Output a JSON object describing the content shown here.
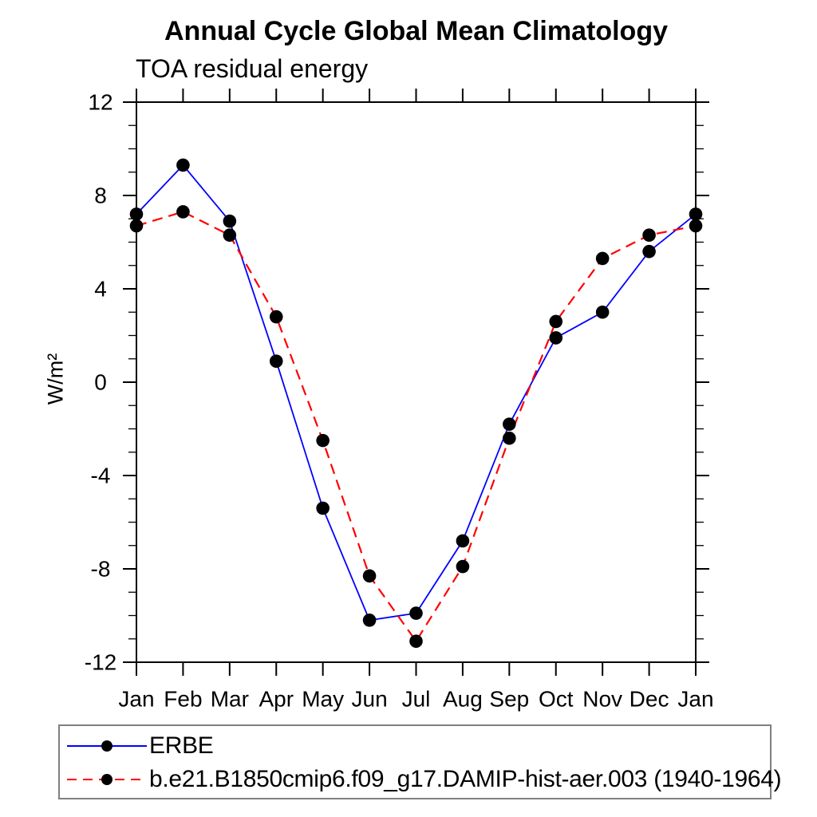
{
  "title": "Annual Cycle Global Mean Climatology",
  "subtitle": "TOA residual energy",
  "chart_data": {
    "type": "line",
    "title": "Annual Cycle Global Mean Climatology",
    "subtitle": "TOA residual energy",
    "xlabel": "",
    "ylabel": "W/m²",
    "categories": [
      "Jan",
      "Feb",
      "Mar",
      "Apr",
      "May",
      "Jun",
      "Jul",
      "Aug",
      "Sep",
      "Oct",
      "Nov",
      "Dec",
      "Jan"
    ],
    "ylim": [
      -12,
      12
    ],
    "ytick_major": [
      -12,
      -8,
      -4,
      0,
      4,
      8,
      12
    ],
    "ytick_minor_step": 1,
    "grid": false,
    "legend_position": "bottom-left-box",
    "frame_color": "#000000",
    "marker": "filled-circle",
    "marker_color": "#000000",
    "series": [
      {
        "name": "ERBE",
        "color": "#0000ff",
        "line_style": "solid",
        "values": [
          7.2,
          9.3,
          6.9,
          0.9,
          -5.4,
          -10.2,
          -9.9,
          -6.8,
          -1.8,
          1.9,
          3.0,
          5.6,
          7.2
        ]
      },
      {
        "name": "b.e21.B1850cmip6.f09_g17.DAMIP-hist-aer.003 (1940-1964)",
        "color": "#ff0000",
        "line_style": "dashed",
        "values": [
          6.7,
          7.3,
          6.3,
          2.8,
          -2.5,
          -8.3,
          -11.1,
          -7.9,
          -2.4,
          2.6,
          5.3,
          6.3,
          6.7
        ]
      }
    ]
  }
}
